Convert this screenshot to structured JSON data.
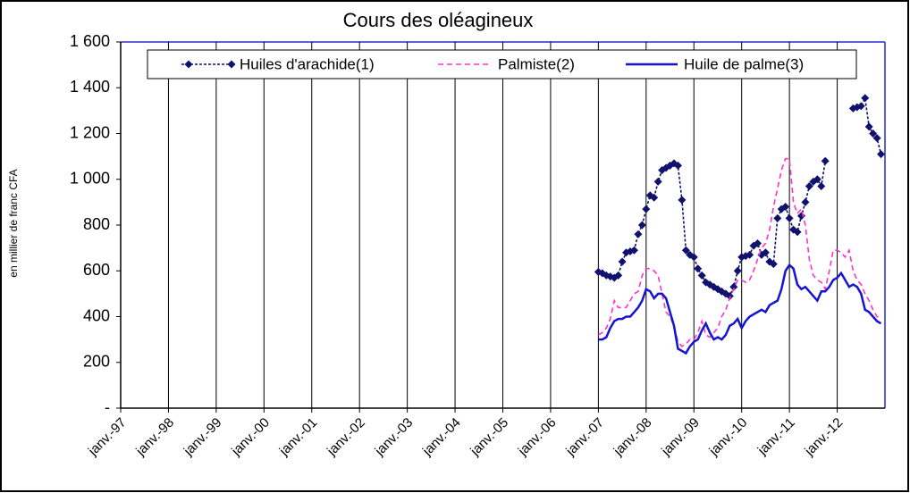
{
  "chart_data": {
    "type": "line",
    "title": "Cours des oléagineux",
    "y_label": "en millier de franc CFA",
    "categories": [
      "janv.-97",
      null,
      null,
      null,
      null,
      null,
      null,
      null,
      null,
      null,
      null,
      null,
      "janv.-98",
      null,
      null,
      null,
      null,
      null,
      null,
      null,
      null,
      null,
      null,
      null,
      "janv.-99",
      null,
      null,
      null,
      null,
      null,
      null,
      null,
      null,
      null,
      null,
      null,
      "janv.-00",
      null,
      null,
      null,
      null,
      null,
      null,
      null,
      null,
      null,
      null,
      null,
      "janv.-01",
      null,
      null,
      null,
      null,
      null,
      null,
      null,
      null,
      null,
      null,
      null,
      "janv.-02",
      null,
      null,
      null,
      null,
      null,
      null,
      null,
      null,
      null,
      null,
      null,
      "janv.-03",
      null,
      null,
      null,
      null,
      null,
      null,
      null,
      null,
      null,
      null,
      null,
      "janv.-04",
      null,
      null,
      null,
      null,
      null,
      null,
      null,
      null,
      null,
      null,
      null,
      "janv.-05",
      null,
      null,
      null,
      null,
      null,
      null,
      null,
      null,
      null,
      null,
      null,
      "janv.-06",
      null,
      null,
      null,
      null,
      null,
      null,
      null,
      null,
      null,
      null,
      null,
      "janv.-07",
      null,
      null,
      null,
      null,
      null,
      null,
      null,
      null,
      null,
      null,
      null,
      "janv.-08",
      null,
      null,
      null,
      null,
      null,
      null,
      null,
      null,
      null,
      null,
      null,
      "janv.-09",
      null,
      null,
      null,
      null,
      null,
      null,
      null,
      null,
      null,
      null,
      null,
      "janv.-10",
      null,
      null,
      null,
      null,
      null,
      null,
      null,
      null,
      null,
      null,
      null,
      "janv.-11",
      null,
      null,
      null,
      null,
      null,
      null,
      null,
      null,
      null,
      null,
      null,
      "janv.-12",
      null,
      null,
      null,
      null,
      null,
      null,
      null,
      null,
      null,
      null,
      null
    ],
    "series": [
      {
        "name": "Huiles d'arachide(1)",
        "color": "#10106e",
        "dashed": true,
        "markers": true,
        "values": [
          null,
          null,
          null,
          null,
          null,
          null,
          null,
          null,
          null,
          null,
          null,
          null,
          null,
          null,
          null,
          null,
          null,
          null,
          null,
          null,
          null,
          null,
          null,
          null,
          null,
          null,
          null,
          null,
          null,
          null,
          null,
          null,
          null,
          null,
          null,
          null,
          null,
          null,
          null,
          null,
          null,
          null,
          null,
          null,
          null,
          null,
          null,
          null,
          null,
          null,
          null,
          null,
          null,
          null,
          null,
          null,
          null,
          null,
          null,
          null,
          null,
          null,
          null,
          null,
          null,
          null,
          null,
          null,
          null,
          null,
          null,
          null,
          null,
          null,
          null,
          null,
          null,
          null,
          null,
          null,
          null,
          null,
          null,
          null,
          null,
          null,
          null,
          null,
          null,
          null,
          null,
          null,
          null,
          null,
          null,
          null,
          null,
          null,
          null,
          null,
          null,
          null,
          null,
          null,
          null,
          null,
          null,
          null,
          null,
          null,
          null,
          null,
          null,
          null,
          null,
          null,
          null,
          null,
          null,
          null,
          595,
          590,
          580,
          575,
          570,
          580,
          640,
          680,
          685,
          690,
          760,
          800,
          870,
          930,
          920,
          990,
          1040,
          1050,
          1060,
          1070,
          1060,
          910,
          690,
          670,
          660,
          610,
          580,
          550,
          540,
          530,
          520,
          510,
          500,
          490,
          530,
          600,
          660,
          665,
          670,
          710,
          720,
          670,
          680,
          640,
          630,
          830,
          870,
          880,
          830,
          780,
          770,
          840,
          900,
          970,
          990,
          1000,
          970,
          1080,
          null,
          null,
          null,
          null,
          null,
          null,
          1310,
          1315,
          1320,
          1355,
          1230,
          1200,
          1180,
          1110
        ]
      },
      {
        "name": "Palmiste(2)",
        "color": "#ff33cc",
        "dashed": true,
        "markers": false,
        "values": [
          null,
          null,
          null,
          null,
          null,
          null,
          null,
          null,
          null,
          null,
          null,
          null,
          null,
          null,
          null,
          null,
          null,
          null,
          null,
          null,
          null,
          null,
          null,
          null,
          null,
          null,
          null,
          null,
          null,
          null,
          null,
          null,
          null,
          null,
          null,
          null,
          null,
          null,
          null,
          null,
          null,
          null,
          null,
          null,
          null,
          null,
          null,
          null,
          null,
          null,
          null,
          null,
          null,
          null,
          null,
          null,
          null,
          null,
          null,
          null,
          null,
          null,
          null,
          null,
          null,
          null,
          null,
          null,
          null,
          null,
          null,
          null,
          null,
          null,
          null,
          null,
          null,
          null,
          null,
          null,
          null,
          null,
          null,
          null,
          null,
          null,
          null,
          null,
          null,
          null,
          null,
          null,
          null,
          null,
          null,
          null,
          null,
          null,
          null,
          null,
          null,
          null,
          null,
          null,
          null,
          null,
          null,
          null,
          null,
          null,
          null,
          null,
          null,
          null,
          null,
          null,
          null,
          null,
          null,
          null,
          320,
          330,
          350,
          390,
          470,
          440,
          440,
          440,
          470,
          500,
          510,
          580,
          610,
          610,
          600,
          580,
          500,
          420,
          400,
          360,
          290,
          270,
          280,
          300,
          300,
          330,
          380,
          320,
          310,
          330,
          350,
          400,
          430,
          480,
          520,
          560,
          560,
          550,
          560,
          600,
          650,
          700,
          720,
          780,
          880,
          960,
          1040,
          1090,
          1090,
          900,
          850,
          870,
          800,
          650,
          580,
          560,
          550,
          520,
          600,
          690,
          690,
          680,
          660,
          690,
          600,
          560,
          540,
          500,
          470,
          430,
          400,
          390
        ]
      },
      {
        "name": "Huile de palme(3)",
        "color": "#1414d2",
        "dashed": false,
        "markers": false,
        "values": [
          null,
          null,
          null,
          null,
          null,
          null,
          null,
          null,
          null,
          null,
          null,
          null,
          null,
          null,
          null,
          null,
          null,
          null,
          null,
          null,
          null,
          null,
          null,
          null,
          null,
          null,
          null,
          null,
          null,
          null,
          null,
          null,
          null,
          null,
          null,
          null,
          null,
          null,
          null,
          null,
          null,
          null,
          null,
          null,
          null,
          null,
          null,
          null,
          null,
          null,
          null,
          null,
          null,
          null,
          null,
          null,
          null,
          null,
          null,
          null,
          null,
          null,
          null,
          null,
          null,
          null,
          null,
          null,
          null,
          null,
          null,
          null,
          null,
          null,
          null,
          null,
          null,
          null,
          null,
          null,
          null,
          null,
          null,
          null,
          null,
          null,
          null,
          null,
          null,
          null,
          null,
          null,
          null,
          null,
          null,
          null,
          null,
          null,
          null,
          null,
          null,
          null,
          null,
          null,
          null,
          null,
          null,
          null,
          null,
          null,
          null,
          null,
          null,
          null,
          null,
          null,
          null,
          null,
          null,
          null,
          300,
          300,
          310,
          350,
          380,
          390,
          390,
          400,
          400,
          420,
          440,
          470,
          520,
          510,
          480,
          500,
          500,
          480,
          420,
          360,
          260,
          250,
          240,
          270,
          290,
          300,
          340,
          370,
          330,
          300,
          310,
          300,
          320,
          360,
          370,
          390,
          350,
          380,
          400,
          410,
          420,
          430,
          420,
          450,
          460,
          470,
          520,
          600,
          625,
          610,
          540,
          520,
          530,
          510,
          490,
          470,
          510,
          510,
          530,
          560,
          570,
          590,
          560,
          530,
          540,
          530,
          500,
          430,
          420,
          400,
          380,
          370
        ]
      }
    ],
    "ylim": [
      0,
      1600
    ],
    "yticks": [
      {
        "value": 0,
        "label": "-"
      },
      200,
      400,
      600,
      800,
      {
        "value": 1000,
        "label": "1 000"
      },
      {
        "value": 1200,
        "label": "1 200"
      },
      {
        "value": 1400,
        "label": "1 400"
      },
      {
        "value": 1600,
        "label": "1 600"
      }
    ],
    "grid": "x",
    "legend": "top"
  }
}
